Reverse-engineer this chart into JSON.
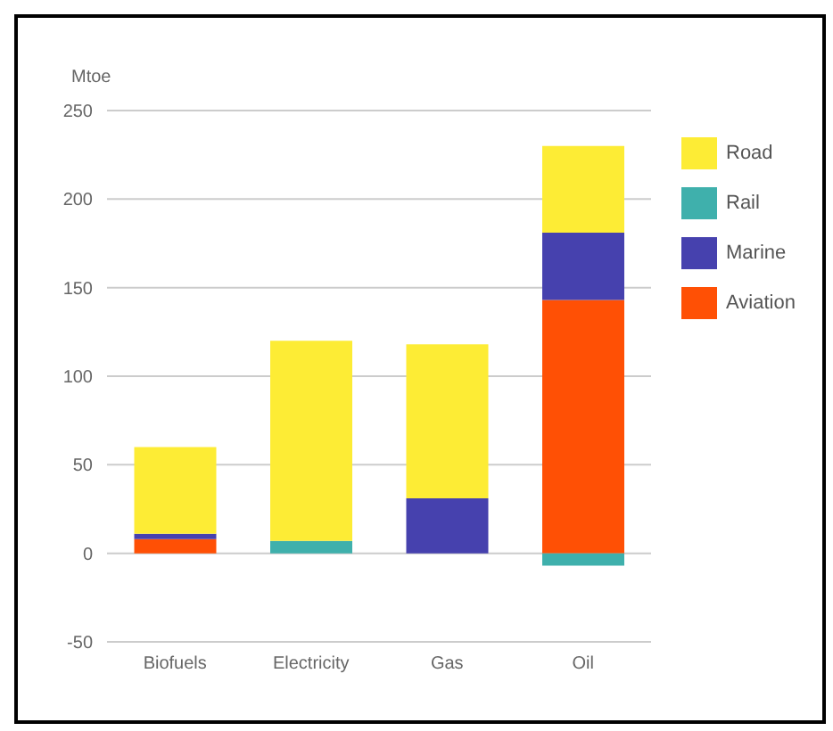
{
  "chart_data": {
    "type": "bar",
    "stacked": true,
    "ylabel": "Mtoe",
    "categories": [
      "Biofuels",
      "Electricity",
      "Gas",
      "Oil"
    ],
    "series": [
      {
        "name": "Aviation",
        "color": "#ff5005",
        "values": [
          8,
          0,
          0,
          143
        ]
      },
      {
        "name": "Marine",
        "color": "#4641ae",
        "values": [
          3,
          0,
          31,
          38
        ]
      },
      {
        "name": "Rail",
        "color": "#3fb0ac",
        "values": [
          0,
          7,
          0,
          -7
        ]
      },
      {
        "name": "Road",
        "color": "#fdec35",
        "values": [
          49,
          113,
          87,
          49
        ]
      }
    ],
    "ylim": [
      -50,
      250
    ],
    "yticks": [
      -50,
      0,
      50,
      100,
      150,
      200,
      250
    ],
    "grid": "y",
    "legend": "right"
  }
}
